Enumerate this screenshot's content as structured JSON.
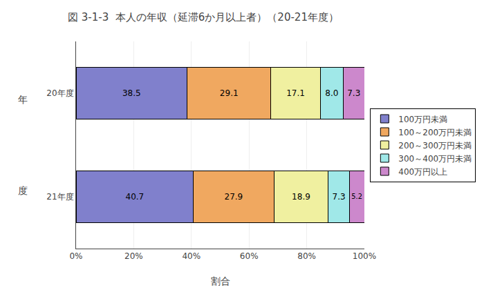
{
  "chart_data": {
    "type": "bar",
    "orientation": "horizontal",
    "stacked": true,
    "title": "図 3-1-3  本人の年収（延滞6か月以上者）（20-21年度）",
    "categories": [
      "21年度",
      "20年度"
    ],
    "series": [
      {
        "name": "100万円未満",
        "values": [
          40.7,
          38.5
        ],
        "color": "#8080cc"
      },
      {
        "name": "100～200万円未満",
        "values": [
          27.9,
          29.1
        ],
        "color": "#f0a860"
      },
      {
        "name": "200～300万円未満",
        "values": [
          18.9,
          17.1
        ],
        "color": "#f0f0a0"
      },
      {
        "name": "300～400万円未満",
        "values": [
          7.3,
          8.0
        ],
        "value_labels": [
          "7.3",
          "8.0"
        ],
        "color": "#a0e8e8"
      },
      {
        "name": "400万円以上",
        "values": [
          5.2,
          7.3
        ],
        "color": "#cc88cc"
      }
    ],
    "xlabel": "割合",
    "annotations": [
      "年",
      "度"
    ],
    "xlim": [
      0,
      100
    ],
    "xticks": [
      {
        "value": 0,
        "label": "0%"
      },
      {
        "value": 20,
        "label": "20%"
      },
      {
        "value": 40,
        "label": "40%"
      },
      {
        "value": 60,
        "label": "60%"
      },
      {
        "value": 80,
        "label": "80%"
      },
      {
        "value": 100,
        "label": "100%"
      }
    ],
    "grid": true,
    "legend": "right",
    "data_labels": true
  }
}
